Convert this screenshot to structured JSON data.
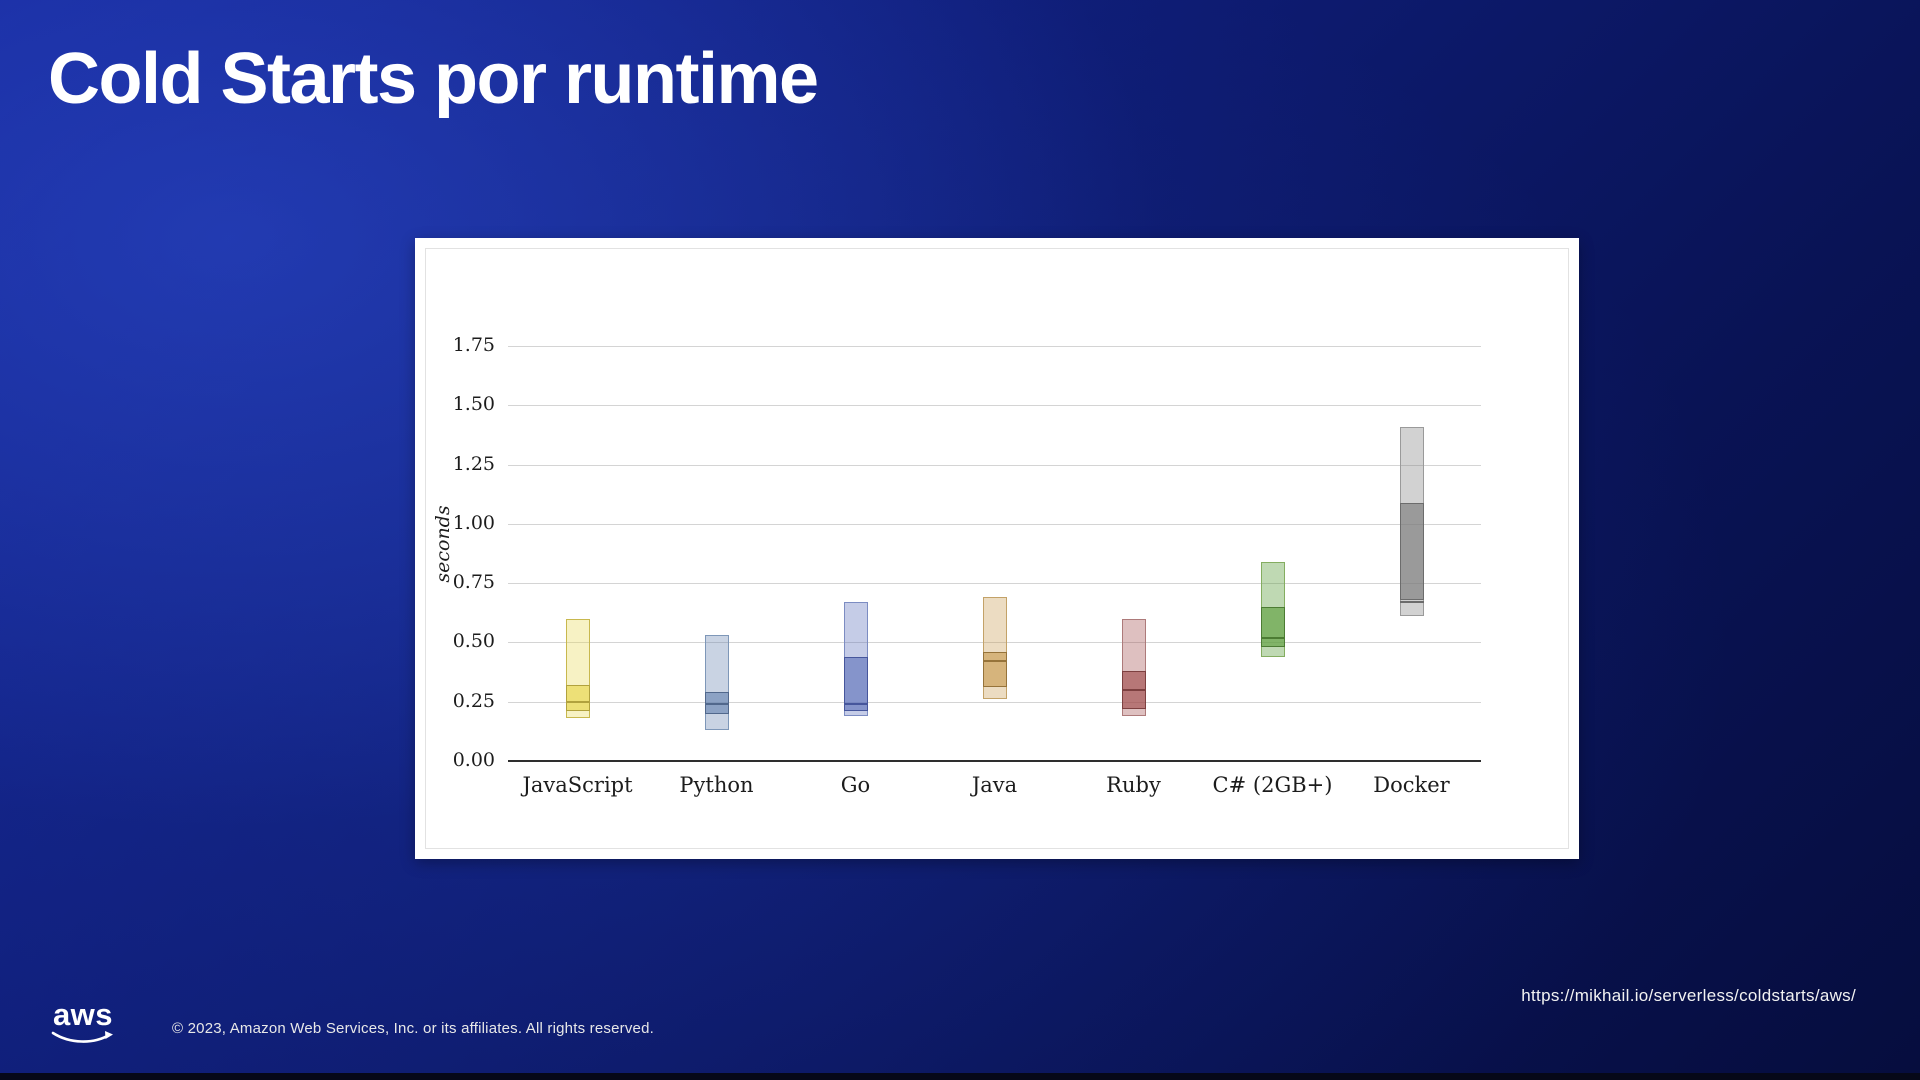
{
  "slide": {
    "title": "Cold Starts por runtime",
    "footer": {
      "logo_text": "aws",
      "copyright": "© 2023, Amazon Web Services, Inc. or its affiliates. All rights reserved.",
      "url": "https://mikhail.io/serverless/coldstarts/aws/"
    },
    "colors": {
      "background_bright": "#1c33ad",
      "background_deep": "#070f45",
      "title_text": "#ffffff",
      "panel_bg": "#ffffff"
    }
  },
  "chart_data": {
    "type": "range-bar",
    "title": "",
    "xlabel": "",
    "ylabel": "seconds",
    "ylim": [
      0,
      1.9
    ],
    "grid": true,
    "legend": false,
    "yticks": [
      0,
      0.25,
      0.5,
      0.75,
      1.0,
      1.25,
      1.5,
      1.75
    ],
    "ytick_labels": [
      "0.00",
      "0.25",
      "0.50",
      "0.75",
      "1.00",
      "1.25",
      "1.50",
      "1.75"
    ],
    "categories": [
      "JavaScript",
      "Python",
      "Go",
      "Java",
      "Ruby",
      "C# (2GB+)",
      "Docker"
    ],
    "series": [
      {
        "name": "JavaScript",
        "range": [
          0.18,
          0.6
        ],
        "box": [
          0.21,
          0.32
        ],
        "median": 0.25,
        "fill": "rgba(232,217,87,0.35)",
        "stroke": "#c8b84e",
        "box_fill": "rgba(232,217,87,0.70)",
        "box_stroke": "#b1a23e"
      },
      {
        "name": "Python",
        "range": [
          0.13,
          0.53
        ],
        "box": [
          0.2,
          0.29
        ],
        "median": 0.24,
        "fill": "rgba(100,130,175,0.35)",
        "stroke": "#7e97b8",
        "box_fill": "rgba(100,130,175,0.60)",
        "box_stroke": "#51688c"
      },
      {
        "name": "Go",
        "range": [
          0.19,
          0.67
        ],
        "box": [
          0.21,
          0.44
        ],
        "median": 0.24,
        "fill": "rgba(90,110,185,0.35)",
        "stroke": "#7c8cc2",
        "box_fill": "rgba(90,110,185,0.60)",
        "box_stroke": "#46569c"
      },
      {
        "name": "Java",
        "range": [
          0.26,
          0.69
        ],
        "box": [
          0.31,
          0.46
        ],
        "median": 0.42,
        "fill": "rgba(200,155,80,0.35)",
        "stroke": "#c3a268",
        "box_fill": "rgba(200,155,80,0.62)",
        "box_stroke": "#96733a"
      },
      {
        "name": "Ruby",
        "range": [
          0.19,
          0.6
        ],
        "box": [
          0.22,
          0.38
        ],
        "median": 0.3,
        "fill": "rgba(160,75,75,0.35)",
        "stroke": "#ad7a7a",
        "box_fill": "rgba(160,75,75,0.62)",
        "box_stroke": "#7d4040"
      },
      {
        "name": "C# (2GB+)",
        "range": [
          0.44,
          0.84
        ],
        "box": [
          0.48,
          0.65
        ],
        "median": 0.52,
        "fill": "rgba(95,160,65,0.40)",
        "stroke": "#84ad60",
        "box_fill": "rgba(95,160,65,0.65)",
        "box_stroke": "#4c7c33"
      },
      {
        "name": "Docker",
        "range": [
          0.61,
          1.41
        ],
        "box": [
          0.68,
          1.09
        ],
        "median": 0.67,
        "fill": "rgba(125,125,125,0.35)",
        "stroke": "#9a9a9a",
        "box_fill": "rgba(125,125,125,0.65)",
        "box_stroke": "#6c6c6c"
      }
    ]
  }
}
